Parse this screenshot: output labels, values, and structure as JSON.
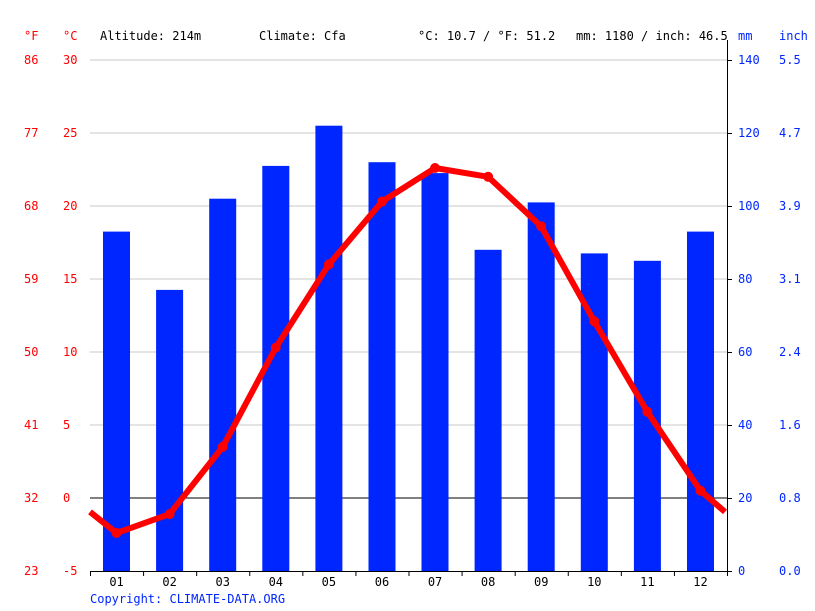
{
  "header": {
    "unit_f": "°F",
    "unit_c": "°C",
    "altitude": "Altitude: 214m",
    "climate": "Climate: Cfa",
    "avg_temp": "°C: 10.7 / °F: 51.2",
    "precip_total": "mm: 1180 / inch: 46.5",
    "unit_mm": "mm",
    "unit_inch": "inch"
  },
  "axes": {
    "fahrenheit_ticks": [
      "86",
      "77",
      "68",
      "59",
      "50",
      "41",
      "32",
      "23"
    ],
    "celsius_ticks": [
      "30",
      "25",
      "20",
      "15",
      "10",
      "5",
      "0",
      "-5"
    ],
    "mm_ticks": [
      "140",
      "120",
      "100",
      "80",
      "60",
      "40",
      "20",
      "0"
    ],
    "inch_ticks": [
      "5.5",
      "4.7",
      "3.9",
      "3.1",
      "2.4",
      "1.6",
      "0.8",
      "0.0"
    ]
  },
  "footer": {
    "copyright": "Copyright: CLIMATE-DATA.ORG"
  },
  "colors": {
    "temperature": "#ff0000",
    "precipitation": "#0026ff",
    "grid": "#c8c8c8",
    "axis": "#000000"
  },
  "chart_data": {
    "type": "bar+line",
    "title": "",
    "categories": [
      "01",
      "02",
      "03",
      "04",
      "05",
      "06",
      "07",
      "08",
      "09",
      "10",
      "11",
      "12"
    ],
    "series": [
      {
        "name": "Precipitation (mm)",
        "type": "bar",
        "axis": "right",
        "color": "#0026ff",
        "values": [
          93,
          77,
          102,
          111,
          122,
          112,
          109,
          88,
          101,
          87,
          85,
          93
        ]
      },
      {
        "name": "Temperature (°C)",
        "type": "line",
        "axis": "left",
        "color": "#ff0000",
        "values": [
          -2.4,
          -1.1,
          3.5,
          10.3,
          16.0,
          20.3,
          22.6,
          22.0,
          18.6,
          12.1,
          5.9,
          0.5
        ]
      }
    ],
    "xlabel": "",
    "ylabel_left": "°C / °F",
    "ylabel_right": "mm / inch",
    "ylim_left_c": [
      -5,
      30
    ],
    "ylim_left_f": [
      23,
      86
    ],
    "ylim_right_mm": [
      0,
      140
    ],
    "ylim_right_inch": [
      0.0,
      5.5
    ],
    "grid": true,
    "legend": "none",
    "annotations": [
      "Altitude: 214m",
      "Climate: Cfa",
      "°C: 10.7 / °F: 51.2",
      "mm: 1180 / inch: 46.5"
    ]
  }
}
